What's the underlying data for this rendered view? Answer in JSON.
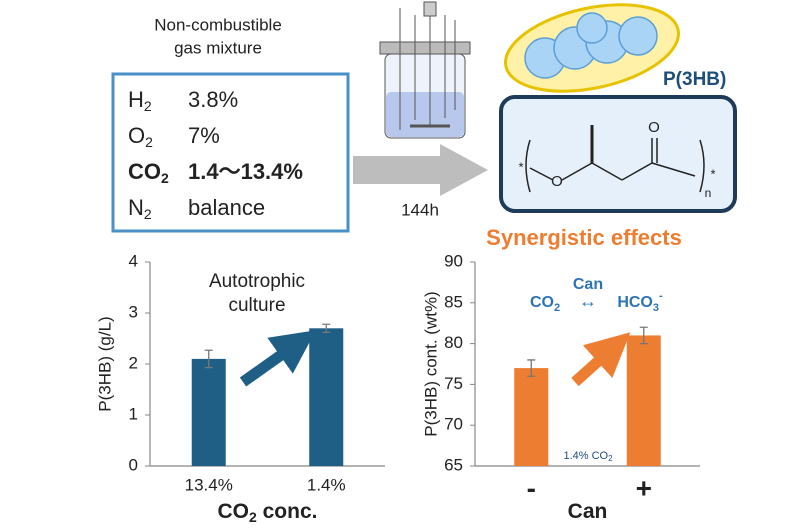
{
  "gas": {
    "caption": [
      "Non-combustible",
      "gas mixture"
    ],
    "rows": [
      {
        "symbol": "H",
        "sub": "2",
        "value": "3.8%"
      },
      {
        "symbol": "O",
        "sub": "2",
        "value": "7%"
      },
      {
        "symbol": "CO",
        "sub": "2",
        "value": "1.4〜13.4%"
      },
      {
        "symbol": "N",
        "sub": "2",
        "value": "balance"
      }
    ]
  },
  "duration": "144h",
  "polymer": {
    "label": "P(3HB)",
    "atoms": [
      "O",
      "O"
    ],
    "ends": [
      "*",
      "*"
    ],
    "repeat": "n"
  },
  "headline": "Synergistic effects",
  "chart_data": [
    {
      "type": "bar",
      "ylabel": "P(3HB) (g/L)",
      "xlabel": {
        "main": "CO",
        "sub": "2",
        "rest": " conc."
      },
      "categories": [
        "13.4%",
        "1.4%"
      ],
      "values": [
        2.1,
        2.7
      ],
      "errors": [
        0.17,
        0.08
      ],
      "color": "#1f5f86",
      "ylim": [
        0,
        4
      ],
      "yticks": [
        0,
        1,
        2,
        3,
        4
      ],
      "annotations": [
        "Autotrophic",
        "culture"
      ]
    },
    {
      "type": "bar",
      "ylabel": "P(3HB) cont. (wt%)",
      "xlabel": {
        "main": "Can"
      },
      "categories": [
        "-",
        "+"
      ],
      "values": [
        77,
        81
      ],
      "errors": [
        1,
        1
      ],
      "color": "#ed7d31",
      "ylim": [
        65,
        90
      ],
      "yticks": [
        65,
        70,
        75,
        80,
        85,
        90
      ],
      "annotations": {
        "enzyme": "Can",
        "left": {
          "main": "CO",
          "sub": "2"
        },
        "arrow": "↔",
        "right": {
          "main": "HCO",
          "sub": "3",
          "sup": "-"
        },
        "note": {
          "main": "1.4% CO",
          "sub": "2"
        }
      }
    }
  ]
}
